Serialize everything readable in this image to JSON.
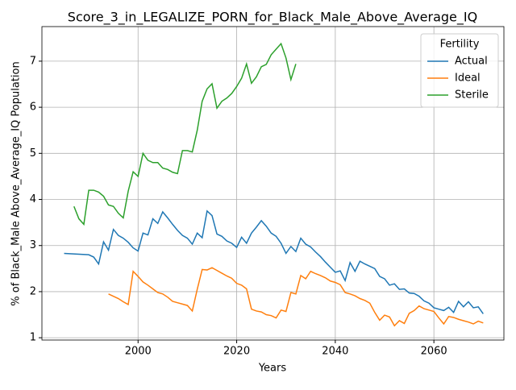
{
  "chart_data": {
    "type": "line",
    "title": "Score_3_in_LEGALIZE_PORN_for_Black_Male_Above_Average_IQ",
    "x_label": "Years",
    "y_label": "% of Black_Male Above_Average_IQ Population",
    "xlim": [
      1980.5,
      2074.2
    ],
    "ylim": [
      0.95,
      7.75
    ],
    "xticks": [
      2000,
      2020,
      2040,
      2060
    ],
    "yticks": [
      1,
      2,
      3,
      4,
      5,
      6,
      7
    ],
    "grid": true,
    "legend_title": "Fertility",
    "legend_position": "upper right",
    "series": [
      {
        "name": "Actual",
        "color": "#1f77b4",
        "x": [
          1985,
          1990,
          1991,
          1992,
          1993,
          1994,
          1995,
          1996,
          1997,
          1998,
          1999,
          2000,
          2001,
          2002,
          2003,
          2004,
          2005,
          2006,
          2007,
          2008,
          2009,
          2010,
          2011,
          2012,
          2013,
          2014,
          2015,
          2016,
          2017,
          2018,
          2019,
          2020,
          2021,
          2022,
          2023,
          2024,
          2025,
          2026,
          2027,
          2028,
          2029,
          2030,
          2031,
          2032,
          2033,
          2034,
          2035,
          2036,
          2037,
          2038,
          2039,
          2040,
          2041,
          2042,
          2043,
          2044,
          2045,
          2046,
          2047,
          2048,
          2049,
          2050,
          2051,
          2052,
          2053,
          2054,
          2055,
          2056,
          2057,
          2058,
          2059,
          2060,
          2061,
          2062,
          2063,
          2064,
          2065,
          2066,
          2067,
          2068,
          2069,
          2070
        ],
        "values": [
          2.83,
          2.8,
          2.75,
          2.6,
          3.08,
          2.9,
          3.35,
          3.22,
          3.16,
          3.07,
          2.95,
          2.88,
          3.27,
          3.23,
          3.58,
          3.48,
          3.73,
          3.6,
          3.46,
          3.33,
          3.22,
          3.16,
          3.03,
          3.27,
          3.17,
          3.75,
          3.65,
          3.25,
          3.2,
          3.1,
          3.05,
          2.96,
          3.18,
          3.05,
          3.27,
          3.4,
          3.54,
          3.42,
          3.27,
          3.2,
          3.05,
          2.83,
          2.98,
          2.87,
          3.16,
          3.03,
          2.97,
          2.86,
          2.76,
          2.64,
          2.53,
          2.42,
          2.45,
          2.24,
          2.63,
          2.44,
          2.66,
          2.6,
          2.55,
          2.5,
          2.33,
          2.28,
          2.14,
          2.17,
          2.05,
          2.06,
          1.97,
          1.96,
          1.9,
          1.8,
          1.75,
          1.65,
          1.62,
          1.59,
          1.66,
          1.55,
          1.79,
          1.67,
          1.78,
          1.65,
          1.67,
          1.52
        ]
      },
      {
        "name": "Ideal",
        "color": "#ff7f0e",
        "x": [
          1994,
          1995,
          1996,
          1997,
          1998,
          1999,
          2000,
          2001,
          2002,
          2003,
          2004,
          2005,
          2006,
          2007,
          2008,
          2009,
          2010,
          2011,
          2012,
          2013,
          2014,
          2015,
          2016,
          2017,
          2018,
          2019,
          2020,
          2021,
          2022,
          2023,
          2024,
          2025,
          2026,
          2027,
          2028,
          2029,
          2030,
          2031,
          2032,
          2033,
          2034,
          2035,
          2036,
          2037,
          2038,
          2039,
          2040,
          2041,
          2042,
          2043,
          2044,
          2045,
          2046,
          2047,
          2048,
          2049,
          2050,
          2051,
          2052,
          2053,
          2054,
          2055,
          2056,
          2057,
          2058,
          2059,
          2060,
          2061,
          2062,
          2063,
          2064,
          2065,
          2066,
          2067,
          2068,
          2069,
          2070
        ],
        "values": [
          1.95,
          1.9,
          1.85,
          1.78,
          1.72,
          2.44,
          2.33,
          2.21,
          2.14,
          2.06,
          1.98,
          1.95,
          1.88,
          1.79,
          1.76,
          1.73,
          1.7,
          1.58,
          2.05,
          2.48,
          2.47,
          2.52,
          2.46,
          2.4,
          2.34,
          2.29,
          2.18,
          2.14,
          2.06,
          1.62,
          1.58,
          1.56,
          1.5,
          1.48,
          1.43,
          1.6,
          1.57,
          1.98,
          1.95,
          2.35,
          2.28,
          2.44,
          2.39,
          2.35,
          2.3,
          2.23,
          2.2,
          2.15,
          1.98,
          1.95,
          1.91,
          1.85,
          1.81,
          1.75,
          1.55,
          1.38,
          1.49,
          1.45,
          1.26,
          1.37,
          1.31,
          1.53,
          1.59,
          1.69,
          1.63,
          1.6,
          1.57,
          1.43,
          1.3,
          1.46,
          1.44,
          1.4,
          1.37,
          1.34,
          1.3,
          1.36,
          1.32
        ]
      },
      {
        "name": "Sterile",
        "color": "#2ca02c",
        "x": [
          1987,
          1988,
          1989,
          1990,
          1991,
          1992,
          1993,
          1994,
          1995,
          1996,
          1997,
          1998,
          1999,
          2000,
          2001,
          2002,
          2003,
          2004,
          2005,
          2006,
          2007,
          2008,
          2009,
          2010,
          2011,
          2012,
          2013,
          2014,
          2015,
          2016,
          2017,
          2018,
          2019,
          2020,
          2021,
          2022,
          2023,
          2024,
          2025,
          2026,
          2027,
          2028,
          2029,
          2030,
          2031,
          2032
        ],
        "values": [
          3.85,
          3.58,
          3.46,
          4.2,
          4.2,
          4.16,
          4.07,
          3.88,
          3.85,
          3.7,
          3.6,
          4.18,
          4.6,
          4.5,
          5.0,
          4.85,
          4.8,
          4.8,
          4.68,
          4.65,
          4.59,
          4.56,
          5.06,
          5.06,
          5.03,
          5.5,
          6.13,
          6.4,
          6.51,
          5.98,
          6.13,
          6.2,
          6.3,
          6.45,
          6.63,
          6.94,
          6.52,
          6.66,
          6.88,
          6.93,
          7.14,
          7.26,
          7.38,
          7.07,
          6.6,
          6.94
        ]
      }
    ]
  }
}
